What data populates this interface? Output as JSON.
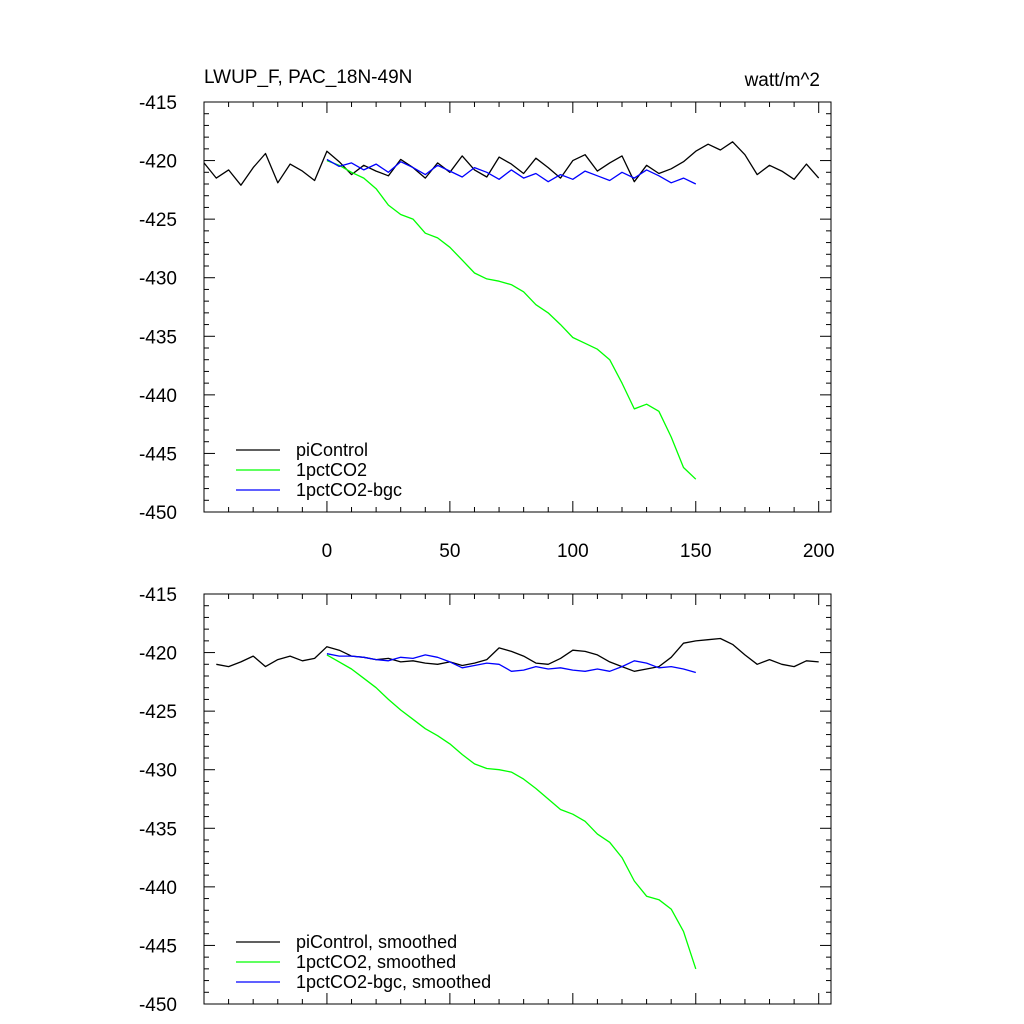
{
  "chart_data": [
    {
      "type": "line",
      "title": "LWUP_F, PAC_18N-49N",
      "units": "watt/m^2",
      "xlim": [
        -50,
        205
      ],
      "ylim": [
        -450,
        -415
      ],
      "x_ticks": [
        0,
        50,
        100,
        150,
        200
      ],
      "x_tick_labels": [
        "0",
        "50",
        "100",
        "150",
        "200"
      ],
      "y_ticks": [
        -415,
        -420,
        -425,
        -430,
        -435,
        -440,
        -445,
        -450
      ],
      "y_tick_labels": [
        "-415",
        "-420",
        "-425",
        "-430",
        "-435",
        "-440",
        "-445",
        "-450"
      ],
      "grid": false,
      "legend_position": "bottom-left",
      "series": [
        {
          "name": "piControl",
          "color": "#000000",
          "x": [
            -50,
            -45,
            -40,
            -35,
            -30,
            -25,
            -20,
            -15,
            -10,
            -5,
            0,
            5,
            10,
            15,
            20,
            25,
            30,
            35,
            40,
            45,
            50,
            55,
            60,
            65,
            70,
            75,
            80,
            85,
            90,
            95,
            100,
            105,
            110,
            115,
            120,
            125,
            130,
            135,
            140,
            145,
            150,
            155,
            160,
            165,
            170,
            175,
            180,
            185,
            190,
            195,
            200
          ],
          "y": [
            -420.2,
            -421.5,
            -420.8,
            -422.1,
            -420.6,
            -419.4,
            -421.9,
            -420.3,
            -420.9,
            -421.7,
            -419.2,
            -420.1,
            -421.2,
            -420.4,
            -420.9,
            -421.3,
            -419.9,
            -420.6,
            -421.5,
            -420.2,
            -421.0,
            -419.6,
            -420.8,
            -421.4,
            -419.7,
            -420.3,
            -421.1,
            -419.8,
            -420.6,
            -421.5,
            -420.0,
            -419.5,
            -420.9,
            -420.2,
            -419.6,
            -421.8,
            -420.4,
            -421.1,
            -420.7,
            -420.1,
            -419.2,
            -418.6,
            -419.1,
            -418.4,
            -419.5,
            -421.2,
            -420.4,
            -420.9,
            -421.6,
            -420.3,
            -421.5
          ]
        },
        {
          "name": "1pctCO2",
          "color": "#00ff00",
          "x": [
            0,
            5,
            10,
            15,
            20,
            25,
            30,
            35,
            40,
            45,
            50,
            55,
            60,
            65,
            70,
            75,
            80,
            85,
            90,
            95,
            100,
            105,
            110,
            115,
            120,
            125,
            130,
            135,
            140,
            145,
            150
          ],
          "y": [
            -420.0,
            -420.4,
            -421.0,
            -421.5,
            -422.4,
            -423.8,
            -424.6,
            -425.0,
            -426.2,
            -426.6,
            -427.4,
            -428.5,
            -429.6,
            -430.1,
            -430.3,
            -430.6,
            -431.2,
            -432.3,
            -433.0,
            -434.0,
            -435.1,
            -435.6,
            -436.1,
            -437.0,
            -439.0,
            -441.2,
            -440.8,
            -441.4,
            -443.6,
            -446.2,
            -447.2
          ]
        },
        {
          "name": "1pctCO2-bgc",
          "color": "#0000ff",
          "x": [
            0,
            5,
            10,
            15,
            20,
            25,
            30,
            35,
            40,
            45,
            50,
            55,
            60,
            65,
            70,
            75,
            80,
            85,
            90,
            95,
            100,
            105,
            110,
            115,
            120,
            125,
            130,
            135,
            140,
            145,
            150
          ],
          "y": [
            -419.9,
            -420.5,
            -420.2,
            -420.8,
            -420.3,
            -421.0,
            -420.1,
            -420.6,
            -421.2,
            -420.4,
            -420.9,
            -421.4,
            -420.6,
            -421.0,
            -421.6,
            -420.8,
            -421.5,
            -421.1,
            -421.8,
            -421.2,
            -421.6,
            -420.9,
            -421.3,
            -421.7,
            -421.0,
            -421.5,
            -420.8,
            -421.3,
            -421.9,
            -421.5,
            -422.0
          ]
        }
      ]
    },
    {
      "type": "line",
      "xlim": [
        -50,
        205
      ],
      "ylim": [
        -450,
        -415
      ],
      "x_ticks": [
        0,
        50,
        100,
        150,
        200
      ],
      "y_ticks": [
        -415,
        -420,
        -425,
        -430,
        -435,
        -440,
        -445,
        -450
      ],
      "y_tick_labels": [
        "-415",
        "-420",
        "-425",
        "-430",
        "-435",
        "-440",
        "-445",
        "-450"
      ],
      "grid": false,
      "legend_position": "bottom-left",
      "series": [
        {
          "name": "piControl, smoothed",
          "color": "#000000",
          "x": [
            -45,
            -40,
            -35,
            -30,
            -25,
            -20,
            -15,
            -10,
            -5,
            0,
            5,
            10,
            15,
            20,
            25,
            30,
            35,
            40,
            45,
            50,
            55,
            60,
            65,
            70,
            75,
            80,
            85,
            90,
            95,
            100,
            105,
            110,
            115,
            120,
            125,
            130,
            135,
            140,
            145,
            150,
            155,
            160,
            165,
            170,
            175,
            180,
            185,
            190,
            195,
            200
          ],
          "y": [
            -421.0,
            -421.2,
            -420.8,
            -420.3,
            -421.2,
            -420.6,
            -420.3,
            -420.7,
            -420.5,
            -419.5,
            -419.8,
            -420.3,
            -420.4,
            -420.6,
            -420.5,
            -420.8,
            -420.7,
            -420.9,
            -421.0,
            -420.8,
            -421.1,
            -420.9,
            -420.6,
            -419.6,
            -419.9,
            -420.3,
            -420.9,
            -421.0,
            -420.5,
            -419.8,
            -419.9,
            -420.2,
            -420.8,
            -421.2,
            -421.6,
            -421.4,
            -421.2,
            -420.4,
            -419.2,
            -419.0,
            -418.9,
            -418.8,
            -419.3,
            -420.2,
            -421.0,
            -420.6,
            -421.0,
            -421.2,
            -420.7,
            -420.8
          ]
        },
        {
          "name": "1pctCO2, smoothed",
          "color": "#00ff00",
          "x": [
            0,
            5,
            10,
            15,
            20,
            25,
            30,
            35,
            40,
            45,
            50,
            55,
            60,
            65,
            70,
            75,
            80,
            85,
            90,
            95,
            100,
            105,
            110,
            115,
            120,
            125,
            130,
            135,
            140,
            145,
            150
          ],
          "y": [
            -420.2,
            -420.8,
            -421.4,
            -422.2,
            -423.0,
            -424.0,
            -424.9,
            -425.7,
            -426.5,
            -427.1,
            -427.8,
            -428.7,
            -429.5,
            -429.9,
            -430.0,
            -430.2,
            -430.8,
            -431.6,
            -432.5,
            -433.4,
            -433.8,
            -434.4,
            -435.5,
            -436.2,
            -437.5,
            -439.5,
            -440.8,
            -441.1,
            -441.9,
            -443.8,
            -447.0
          ]
        },
        {
          "name": "1pctCO2-bgc, smoothed",
          "color": "#0000ff",
          "x": [
            0,
            5,
            10,
            15,
            20,
            25,
            30,
            35,
            40,
            45,
            50,
            55,
            60,
            65,
            70,
            75,
            80,
            85,
            90,
            95,
            100,
            105,
            110,
            115,
            120,
            125,
            130,
            135,
            140,
            145,
            150
          ],
          "y": [
            -420.1,
            -420.3,
            -420.3,
            -420.4,
            -420.6,
            -420.7,
            -420.4,
            -420.5,
            -420.2,
            -420.4,
            -420.8,
            -421.3,
            -421.1,
            -420.9,
            -421.0,
            -421.6,
            -421.5,
            -421.2,
            -421.4,
            -421.3,
            -421.5,
            -421.6,
            -421.4,
            -421.6,
            -421.2,
            -420.7,
            -420.9,
            -421.3,
            -421.2,
            -421.4,
            -421.7
          ]
        }
      ]
    }
  ]
}
